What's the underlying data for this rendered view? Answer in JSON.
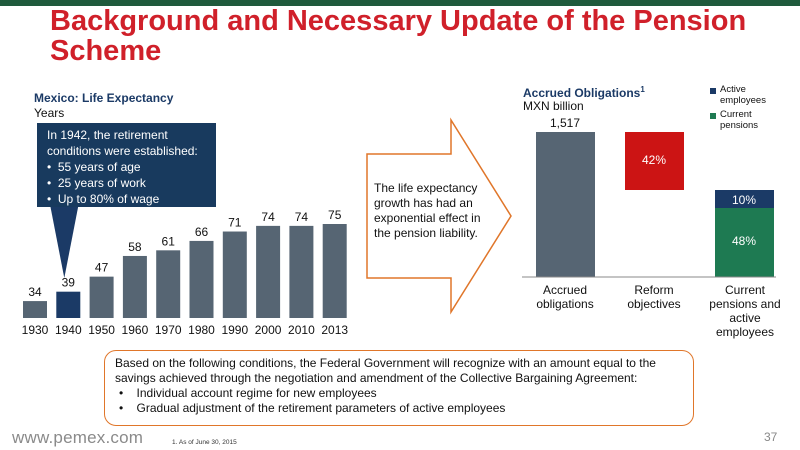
{
  "title": "Background and Necessary Update of the Pension Scheme",
  "life_expectancy": {
    "title": "Mexico: Life Expectancy",
    "subtitle": "Years",
    "callout": {
      "intro": "In 1942, the retirement conditions were established:",
      "bullets": [
        "55 years of age",
        "25 years of work",
        "Up to 80% of wage"
      ]
    }
  },
  "arrow_text": "The life expectancy growth has had an exponential effect in the pension liability.",
  "accrued": {
    "title": "Accrued Obligations",
    "title_sup": "1",
    "subtitle": "MXN billion",
    "legend": [
      {
        "label": "Active employees",
        "color": "#1b3a66"
      },
      {
        "label": "Current pensions",
        "color": "#1e7a52"
      }
    ],
    "bar_total_label": "1,517",
    "segment_labels": [
      "42%",
      "10%",
      "48%"
    ],
    "category_labels": [
      "Accrued obligations",
      "Reform objectives",
      "Current pensions and active employees"
    ]
  },
  "bottom_box": {
    "intro": "Based on the following conditions, the Federal Government will recognize with an amount equal to the savings achieved through the negotiation and amendment of the Collective Bargaining Agreement:",
    "bullets": [
      "Individual account regime for new employees",
      "Gradual adjustment of the retirement parameters of active employees"
    ]
  },
  "footer": {
    "url": "www.pemex.com",
    "footnote": "1.    As of June 30, 2015",
    "page_number": "37"
  },
  "colors": {
    "title": "#d0202a",
    "bar": "#566573",
    "highlight_bar": "#1b3a66",
    "reform": "#cc1414",
    "active": "#1b3a66",
    "pensions": "#1e7a52",
    "accent_border": "#e0762a"
  },
  "chart_data": [
    {
      "type": "bar",
      "title": "Mexico: Life Expectancy",
      "ylabel": "Years",
      "categories": [
        "1930",
        "1940",
        "1950",
        "1960",
        "1970",
        "1980",
        "1990",
        "2000",
        "2010",
        "2013"
      ],
      "values": [
        34,
        39,
        47,
        58,
        61,
        66,
        71,
        74,
        74,
        75
      ],
      "highlight_category": "1940",
      "ylim": [
        25,
        75
      ],
      "grid": false
    },
    {
      "type": "bar",
      "title": "Accrued Obligations",
      "ylabel": "MXN billion",
      "categories": [
        "Accrued obligations",
        "Reform objectives",
        "Current pensions and active employees"
      ],
      "series": [
        {
          "name": "Accrued obligations",
          "values": [
            100,
            0,
            0
          ]
        },
        {
          "name": "Reform objectives",
          "values": [
            0,
            42,
            0
          ]
        },
        {
          "name": "Active employees",
          "values": [
            0,
            0,
            10
          ]
        },
        {
          "name": "Current pensions",
          "values": [
            0,
            0,
            48
          ]
        }
      ],
      "total": 1517,
      "waterfall": true
    }
  ]
}
